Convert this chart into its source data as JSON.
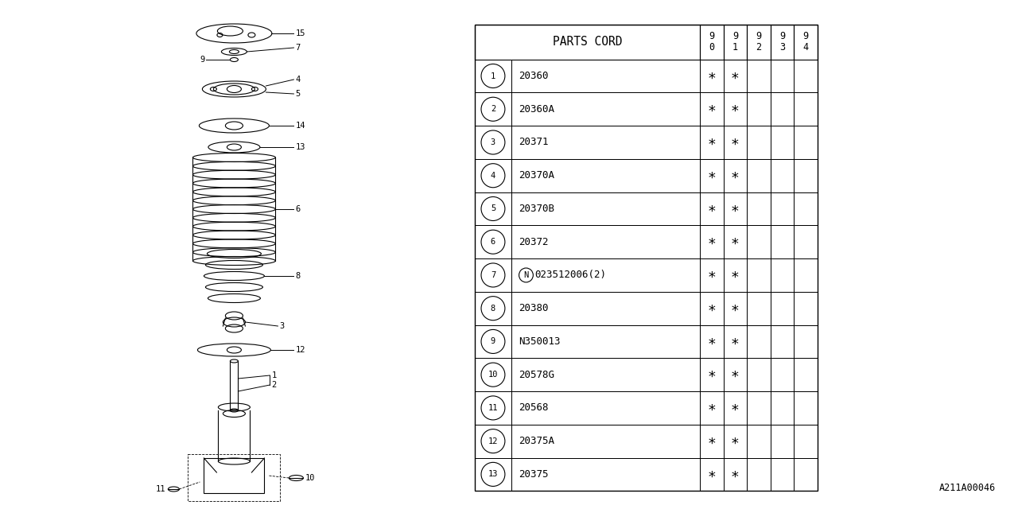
{
  "bg_color": "#ffffff",
  "title_code": "A211A00046",
  "line_color": "#000000",
  "table": {
    "header_label": "PARTS CORD",
    "col_headers": [
      "9\n0",
      "9\n1",
      "9\n2",
      "9\n3",
      "9\n4"
    ],
    "rows": [
      {
        "num": "1",
        "code": "20360",
        "n_circle": false,
        "marks": [
          true,
          true,
          false,
          false,
          false
        ]
      },
      {
        "num": "2",
        "code": "20360A",
        "n_circle": false,
        "marks": [
          true,
          true,
          false,
          false,
          false
        ]
      },
      {
        "num": "3",
        "code": "20371",
        "n_circle": false,
        "marks": [
          true,
          true,
          false,
          false,
          false
        ]
      },
      {
        "num": "4",
        "code": "20370A",
        "n_circle": false,
        "marks": [
          true,
          true,
          false,
          false,
          false
        ]
      },
      {
        "num": "5",
        "code": "20370B",
        "n_circle": false,
        "marks": [
          true,
          true,
          false,
          false,
          false
        ]
      },
      {
        "num": "6",
        "code": "20372",
        "n_circle": false,
        "marks": [
          true,
          true,
          false,
          false,
          false
        ]
      },
      {
        "num": "7",
        "code": "023512006(2)",
        "n_circle": true,
        "marks": [
          true,
          true,
          false,
          false,
          false
        ]
      },
      {
        "num": "8",
        "code": "20380",
        "n_circle": false,
        "marks": [
          true,
          true,
          false,
          false,
          false
        ]
      },
      {
        "num": "9",
        "code": "N350013",
        "n_circle": false,
        "marks": [
          true,
          true,
          false,
          false,
          false
        ]
      },
      {
        "num": "10",
        "code": "20578G",
        "n_circle": false,
        "marks": [
          true,
          true,
          false,
          false,
          false
        ]
      },
      {
        "num": "11",
        "code": "20568",
        "n_circle": false,
        "marks": [
          true,
          true,
          false,
          false,
          false
        ]
      },
      {
        "num": "12",
        "code": "20375A",
        "n_circle": false,
        "marks": [
          true,
          true,
          false,
          false,
          false
        ]
      },
      {
        "num": "13",
        "code": "20375",
        "n_circle": false,
        "marks": [
          true,
          true,
          false,
          false,
          false
        ]
      }
    ]
  }
}
